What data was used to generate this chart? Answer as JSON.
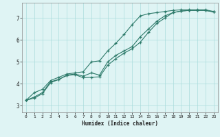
{
  "xlabel": "Humidex (Indice chaleur)",
  "bg_color": "#dff4f4",
  "grid_color": "#aadddd",
  "line_color": "#2d7a6a",
  "xlim": [
    -0.5,
    23.5
  ],
  "ylim": [
    2.7,
    7.7
  ],
  "xticks": [
    0,
    1,
    2,
    3,
    4,
    5,
    6,
    7,
    8,
    9,
    10,
    11,
    12,
    13,
    14,
    15,
    16,
    17,
    18,
    19,
    20,
    21,
    22,
    23
  ],
  "yticks": [
    3,
    4,
    5,
    6,
    7
  ],
  "line1_x": [
    0,
    1,
    2,
    3,
    4,
    5,
    6,
    7,
    8,
    9,
    10,
    11,
    12,
    13,
    14,
    15,
    16,
    17,
    18,
    19,
    20,
    21,
    22,
    23
  ],
  "line1_y": [
    3.25,
    3.6,
    3.75,
    4.15,
    4.3,
    4.45,
    4.5,
    4.55,
    5.0,
    5.05,
    5.5,
    5.85,
    6.25,
    6.7,
    7.1,
    7.2,
    7.25,
    7.3,
    7.35,
    7.38,
    7.38,
    7.38,
    7.38,
    7.3
  ],
  "line2_x": [
    0,
    1,
    2,
    3,
    4,
    5,
    6,
    7,
    8,
    9,
    10,
    11,
    12,
    13,
    14,
    15,
    16,
    17,
    18,
    19,
    20,
    21,
    22,
    23
  ],
  "line2_y": [
    3.25,
    3.4,
    3.6,
    4.1,
    4.2,
    4.4,
    4.45,
    4.35,
    4.5,
    4.4,
    5.0,
    5.3,
    5.5,
    5.7,
    6.15,
    6.5,
    6.85,
    7.1,
    7.25,
    7.32,
    7.35,
    7.35,
    7.35,
    7.28
  ],
  "line3_x": [
    0,
    1,
    2,
    3,
    4,
    5,
    6,
    7,
    8,
    9,
    10,
    11,
    12,
    13,
    14,
    15,
    16,
    17,
    18,
    19,
    20,
    21,
    22,
    23
  ],
  "line3_y": [
    3.25,
    3.35,
    3.55,
    4.05,
    4.2,
    4.38,
    4.42,
    4.28,
    4.3,
    4.32,
    4.85,
    5.15,
    5.4,
    5.6,
    5.9,
    6.35,
    6.75,
    7.0,
    7.25,
    7.32,
    7.35,
    7.35,
    7.35,
    7.28
  ]
}
